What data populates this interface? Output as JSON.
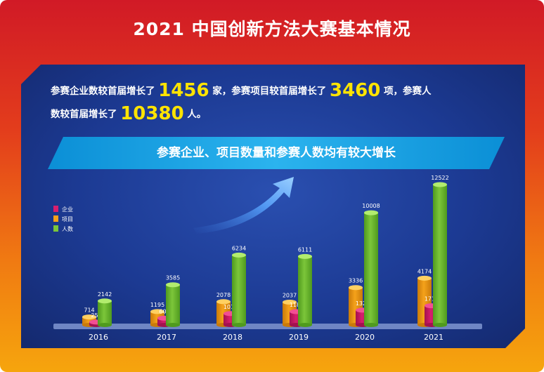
{
  "title": "2021 中国创新方法大赛基本情况",
  "summary": {
    "part1": "参赛企业数较首届增长了",
    "num1": "1456",
    "part2": "家，参赛项目较首届增长了",
    "num2": "3460",
    "part3": "项，参赛人",
    "part4": "数较首届增长了",
    "num3": "10380",
    "part5": "人。"
  },
  "banner": "参赛企业、项目数量和参赛人数均有较大增长",
  "colors": {
    "companies": "#d81e6e",
    "projects": "#f5a21a",
    "people": "#7cc63a"
  },
  "chart_data": {
    "type": "bar",
    "categories": [
      "2016",
      "2017",
      "2018",
      "2019",
      "2020",
      "2021"
    ],
    "series": [
      {
        "name": "企业",
        "values": [
          256,
          604,
          1014,
          1186,
          1320,
          1712
        ]
      },
      {
        "name": "项目",
        "values": [
          714,
          1195,
          2078,
          2037,
          3336,
          4174
        ]
      },
      {
        "name": "人数",
        "values": [
          2142,
          3585,
          6234,
          6111,
          10008,
          12522
        ]
      }
    ],
    "legend_position": "left",
    "grid": false
  }
}
